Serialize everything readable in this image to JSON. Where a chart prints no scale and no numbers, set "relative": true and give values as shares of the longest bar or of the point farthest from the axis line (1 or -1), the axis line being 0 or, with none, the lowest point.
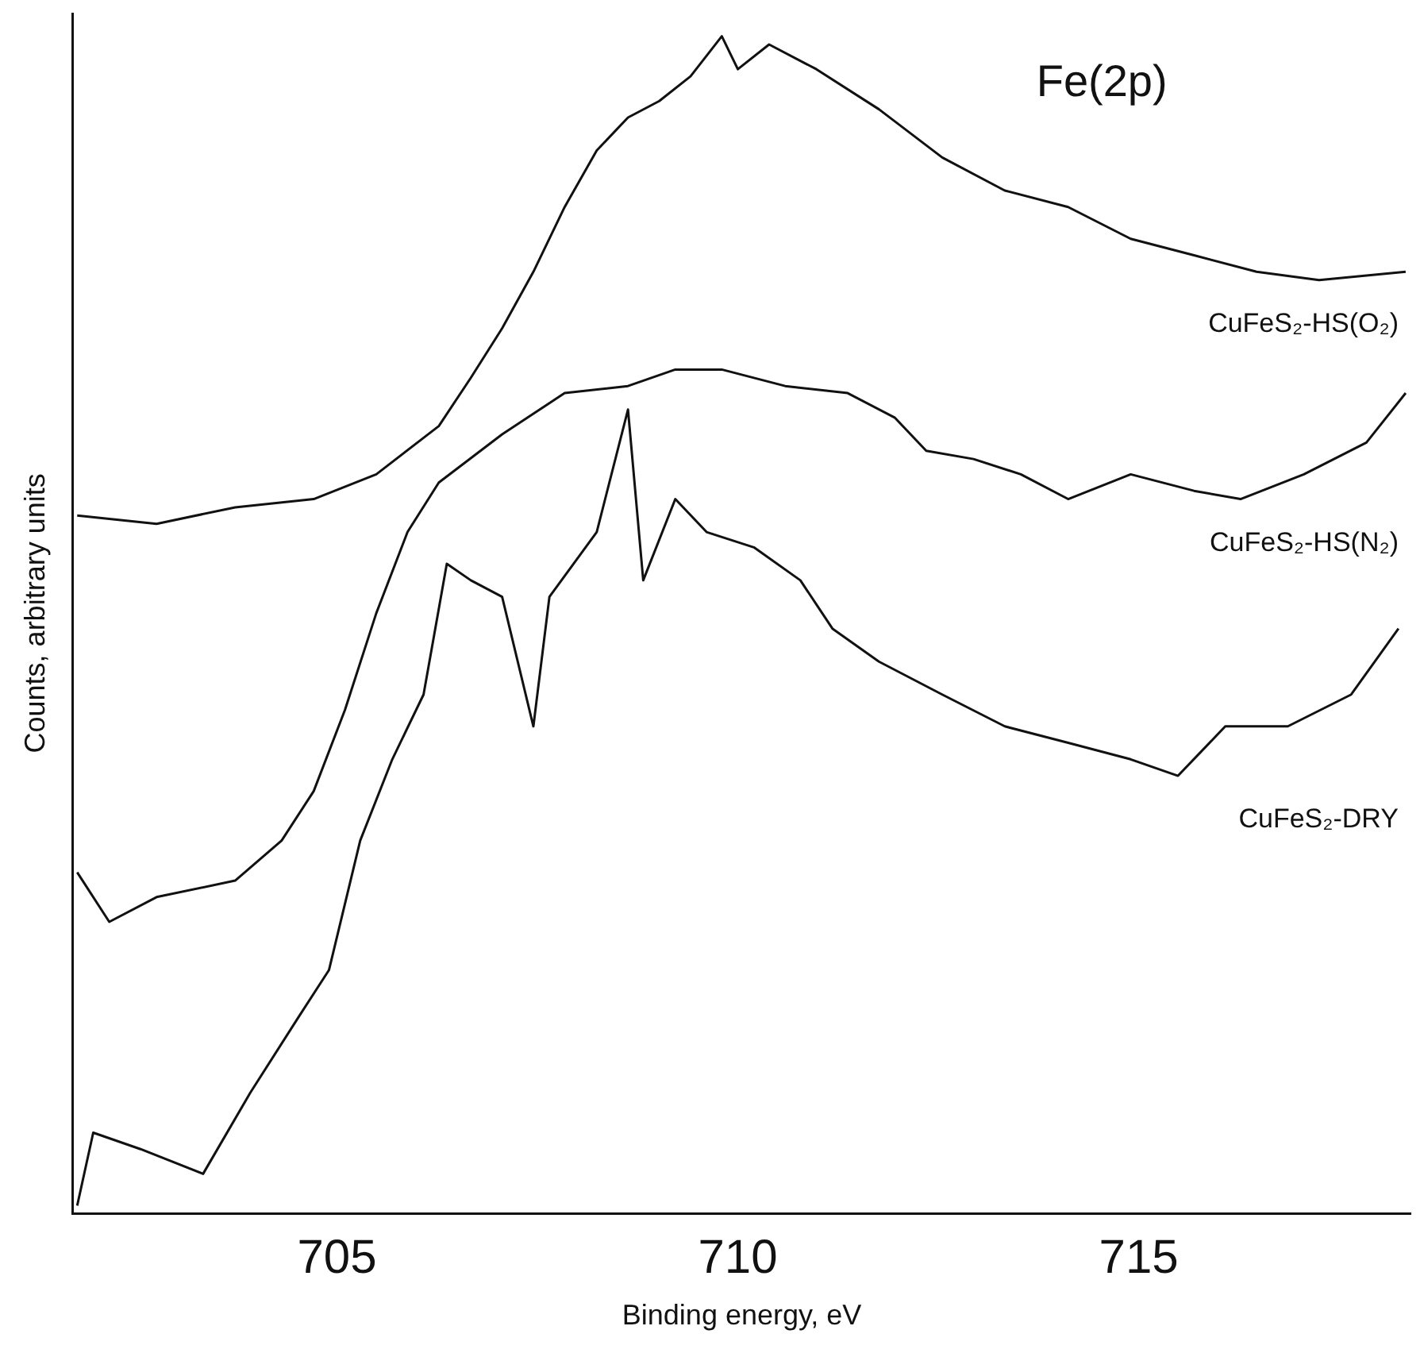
{
  "chart_data": {
    "type": "line",
    "xlabel": "Binding energy, eV",
    "ylabel": "Counts, arbitrary units",
    "relative": true,
    "xlim": [
      701.7,
      718.4
    ],
    "xticks": [
      705,
      710,
      715
    ],
    "grid": false,
    "legend": false,
    "marker": "none",
    "line_style": "solid",
    "annotations": [
      "Fe(2p)"
    ],
    "series": [
      {
        "name": "CuFeS₂-HS(O₂)",
        "color": "#111111",
        "x": [
          701.76,
          702.75,
          703.73,
          704.71,
          705.49,
          706.27,
          706.67,
          707.06,
          707.45,
          707.84,
          708.24,
          708.63,
          709.02,
          709.41,
          709.8,
          710.0,
          710.39,
          710.98,
          711.76,
          712.55,
          713.33,
          714.12,
          714.9,
          715.69,
          716.47,
          717.25,
          718.33
        ],
        "values": [
          0.593,
          0.586,
          0.6,
          0.607,
          0.628,
          0.669,
          0.71,
          0.752,
          0.8,
          0.855,
          0.903,
          0.931,
          0.945,
          0.966,
          1.0,
          0.972,
          0.993,
          0.972,
          0.938,
          0.897,
          0.869,
          0.855,
          0.828,
          0.814,
          0.8,
          0.793,
          0.8
        ]
      },
      {
        "name": "CuFeS₂-HS(N₂)",
        "color": "#111111",
        "x": [
          701.76,
          702.16,
          702.75,
          703.73,
          704.31,
          704.71,
          705.1,
          705.49,
          705.88,
          706.27,
          707.06,
          707.84,
          708.63,
          709.22,
          709.8,
          710.59,
          711.37,
          711.96,
          712.35,
          712.94,
          713.53,
          714.12,
          714.9,
          715.69,
          716.27,
          717.06,
          717.84,
          718.33
        ],
        "values": [
          0.29,
          0.248,
          0.269,
          0.283,
          0.317,
          0.359,
          0.428,
          0.51,
          0.579,
          0.621,
          0.662,
          0.697,
          0.703,
          0.717,
          0.717,
          0.703,
          0.697,
          0.676,
          0.648,
          0.641,
          0.628,
          0.607,
          0.628,
          0.614,
          0.607,
          0.628,
          0.655,
          0.697
        ]
      },
      {
        "name": "CuFeS₂-DRY",
        "color": "#111111",
        "x": [
          701.76,
          701.96,
          702.55,
          703.33,
          703.92,
          704.51,
          704.9,
          705.29,
          705.69,
          706.08,
          706.37,
          706.67,
          707.06,
          707.45,
          707.65,
          708.24,
          708.63,
          708.82,
          709.22,
          709.61,
          710.2,
          710.78,
          711.18,
          711.76,
          712.55,
          713.33,
          714.12,
          714.9,
          715.49,
          716.08,
          716.86,
          717.65,
          718.24
        ],
        "values": [
          0.007,
          0.069,
          0.055,
          0.034,
          0.103,
          0.166,
          0.207,
          0.317,
          0.386,
          0.441,
          0.552,
          0.538,
          0.524,
          0.414,
          0.524,
          0.579,
          0.683,
          0.538,
          0.607,
          0.579,
          0.566,
          0.538,
          0.497,
          0.469,
          0.441,
          0.414,
          0.4,
          0.386,
          0.372,
          0.414,
          0.414,
          0.441,
          0.497
        ]
      }
    ]
  }
}
